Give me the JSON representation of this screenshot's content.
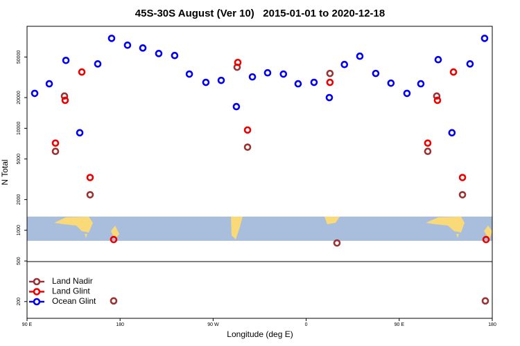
{
  "chart_data": {
    "type": "scatter",
    "title": "45S-30S August (Ver 10)   2015-01-01 to 2020-12-18",
    "x_label": "Longitude (deg E)",
    "y_label": "N Total",
    "log_y": true,
    "legend": "bottom-left",
    "xlim": [
      90,
      540
    ],
    "xticks": [
      {
        "value": 90,
        "label": "90 E"
      },
      180,
      {
        "value": 270,
        "label": "90 W"
      },
      {
        "value": 360,
        "label": "0"
      },
      {
        "value": 450,
        "label": "90 E"
      },
      {
        "value": 540,
        "label": "180"
      }
    ],
    "ylim": [
      137,
      100000
    ],
    "yticks": [
      200,
      500,
      1000,
      2000,
      5000,
      10000,
      20000,
      50000
    ],
    "series": [
      {
        "name": "Land Nadir",
        "color": "#993333",
        "x": [
          117.5,
          126.2,
          151,
          173.8,
          293.2,
          303.3,
          383,
          389.8,
          477.6,
          486.3,
          511.2,
          533.3
        ],
        "values": [
          5940,
          20700,
          2230,
          203,
          39700,
          6530,
          34500,
          750,
          5940,
          20700,
          2230,
          203
        ]
      },
      {
        "name": "Land Glint",
        "color": "#ee0000",
        "x": [
          117.5,
          126.9,
          143,
          151,
          173.8,
          293.9,
          303.3,
          383,
          477.6,
          487,
          502.5,
          511.2,
          534
        ],
        "values": [
          7160,
          18800,
          35600,
          3290,
          811,
          44200,
          9620,
          28200,
          7160,
          18800,
          35600,
          3290,
          811
        ]
      },
      {
        "name": "Ocean Glint",
        "color": "#0000ee",
        "x": [
          97.4,
          111.5,
          127.6,
          141,
          158.4,
          171.8,
          187.2,
          202,
          217.4,
          232.8,
          247,
          263,
          277.8,
          292.5,
          308,
          322.7,
          338,
          352.2,
          367.6,
          382.4,
          397,
          411.9,
          427.3,
          442,
          457.5,
          470.9,
          487.7,
          501,
          518.5,
          532.6
        ],
        "values": [
          22000,
          27300,
          46300,
          9040,
          42800,
          76200,
          65300,
          61300,
          54100,
          51700,
          34000,
          28200,
          29500,
          16300,
          31900,
          35000,
          34000,
          27300,
          28200,
          20000,
          42200,
          50900,
          34500,
          27700,
          22000,
          27300,
          47100,
          9040,
          42800,
          76200
        ]
      }
    ]
  }
}
